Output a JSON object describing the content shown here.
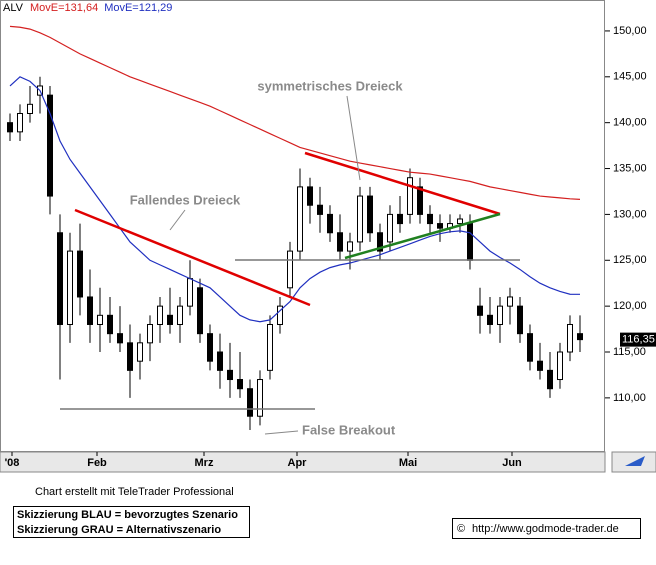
{
  "chart_data": {
    "type": "candlestick",
    "symbol": "ALV",
    "categories": [
      null,
      null,
      null,
      null,
      null,
      null,
      null,
      null,
      null,
      null,
      null,
      null,
      null,
      null,
      null,
      null,
      null,
      null,
      null,
      null,
      null,
      null,
      null,
      null,
      null,
      null,
      null,
      null,
      null,
      null,
      null,
      null,
      null,
      null,
      null,
      null,
      null,
      null,
      null,
      null,
      null,
      null,
      null,
      null,
      null,
      null,
      null,
      null,
      null,
      null,
      null,
      null,
      null,
      null,
      null,
      null,
      null,
      null
    ],
    "open": [
      140,
      139,
      141,
      143,
      143,
      128,
      118,
      126,
      121,
      118,
      119,
      117,
      116,
      114,
      116,
      118,
      119,
      118,
      120,
      122,
      117,
      115,
      113,
      112,
      111,
      108,
      113,
      118,
      122,
      126,
      133,
      131,
      130,
      128,
      126,
      127,
      132,
      128,
      127,
      130,
      130,
      133,
      130,
      129,
      128.5,
      129,
      129,
      120,
      119,
      118,
      120,
      120,
      117,
      114,
      113,
      112,
      115,
      117
    ],
    "high": [
      141,
      142,
      144,
      145,
      144,
      130,
      128,
      129,
      124,
      122,
      121,
      120,
      118,
      117,
      119,
      121,
      122,
      121,
      125,
      123,
      118,
      117,
      116,
      115,
      112,
      113,
      119,
      121,
      127,
      135,
      134,
      133,
      131,
      130,
      128,
      133,
      133,
      129,
      131,
      132,
      135,
      134,
      131,
      130,
      130,
      130,
      130,
      122,
      121,
      121,
      122,
      121,
      118,
      116,
      115,
      116,
      119,
      119
    ],
    "low": [
      138,
      138,
      140,
      141,
      130,
      112,
      116,
      119,
      116,
      115,
      116,
      115,
      110,
      112,
      114,
      116,
      117,
      116,
      119,
      116,
      113,
      111,
      110,
      110,
      106.5,
      107,
      112,
      117,
      121,
      125,
      129,
      128,
      127,
      125,
      124,
      126,
      127,
      125,
      126,
      128,
      129,
      129,
      128,
      127,
      128,
      128,
      124,
      117,
      117,
      116,
      118,
      116,
      113,
      112,
      110,
      111,
      114,
      115
    ],
    "close": [
      139,
      141,
      142,
      144,
      132,
      118,
      126,
      121,
      118,
      119,
      117,
      116,
      113,
      116,
      118,
      120,
      118,
      120,
      123,
      117,
      114,
      113,
      112,
      111,
      108,
      112,
      118,
      120,
      126,
      133,
      131,
      130,
      128,
      126,
      127,
      132,
      128,
      126,
      130,
      129,
      134,
      130,
      129,
      128.5,
      129,
      129.5,
      125,
      119,
      118,
      120,
      121,
      117,
      114,
      113,
      111,
      115,
      118,
      116.35
    ],
    "last_value_label": "116,35",
    "series": [
      {
        "name": "MovE=131,64",
        "color": "#d42020",
        "values": [
          150.5,
          150.4,
          150.2,
          149.8,
          149.3,
          148.7,
          148.1,
          147.5,
          147,
          146.5,
          146,
          145.5,
          145,
          144.6,
          144.2,
          143.8,
          143.4,
          143,
          142.6,
          142.2,
          141.8,
          141.3,
          140.8,
          140.3,
          139.8,
          139.3,
          138.8,
          138.3,
          137.8,
          137.3,
          137,
          136.7,
          136.4,
          136.1,
          135.8,
          135.6,
          135.4,
          135.2,
          135,
          134.8,
          134.6,
          134.5,
          134.4,
          134.2,
          134,
          133.8,
          133.6,
          133.3,
          133,
          132.8,
          132.6,
          132.4,
          132.2,
          132,
          131.9,
          131.8,
          131.7,
          131.64
        ]
      },
      {
        "name": "MovE=121,29",
        "color": "#2030c0",
        "values": [
          144,
          145,
          144.5,
          143.5,
          141,
          138,
          136,
          134.5,
          133,
          131.5,
          130,
          128.5,
          127,
          126,
          125,
          124.5,
          124,
          123.5,
          123,
          122.5,
          122,
          121,
          120,
          119,
          118.5,
          118.3,
          118.5,
          119.5,
          120.5,
          122,
          123,
          123.7,
          124.2,
          124.5,
          124.7,
          125,
          125.3,
          125.6,
          126,
          126.4,
          126.8,
          127.2,
          127.6,
          127.9,
          128.1,
          128.2,
          128,
          127,
          126,
          125.3,
          124.7,
          124,
          123.2,
          122.5,
          122,
          121.6,
          121.3,
          121.29
        ]
      }
    ],
    "ylim": [
      104.1,
      152.5
    ],
    "yticks": [
      {
        "value": 110,
        "label": "110,00"
      },
      {
        "value": 115,
        "label": "115,00"
      },
      {
        "value": 120,
        "label": "120,00"
      },
      {
        "value": 125,
        "label": "125,00"
      },
      {
        "value": 130,
        "label": "130,00"
      },
      {
        "value": 135,
        "label": "135,00"
      },
      {
        "value": 140,
        "label": "140,00"
      },
      {
        "value": 145,
        "label": "145,00"
      },
      {
        "value": 150,
        "label": "150,00"
      }
    ],
    "xticks": [
      {
        "value": 0.2,
        "label": "'08"
      },
      {
        "value": 8.7,
        "label": "Feb"
      },
      {
        "value": 19.4,
        "label": "Mrz"
      },
      {
        "value": 28.7,
        "label": "Apr"
      },
      {
        "value": 39.8,
        "label": "Mai"
      },
      {
        "value": 50.2,
        "label": "Jun"
      }
    ],
    "annotations": [
      "symmetrisches Dreieck",
      "Fallendes Dreieck",
      "False Breakout"
    ],
    "footer": {
      "credit": "Chart erstellt mit TeleTrader Professional",
      "note_blue": "Skizzierung BLAU = bevorzugtes Szenario",
      "note_grey": "Skizzierung GRAU = Alternativszenario",
      "url": "http://www.godmode-trader.de"
    }
  }
}
